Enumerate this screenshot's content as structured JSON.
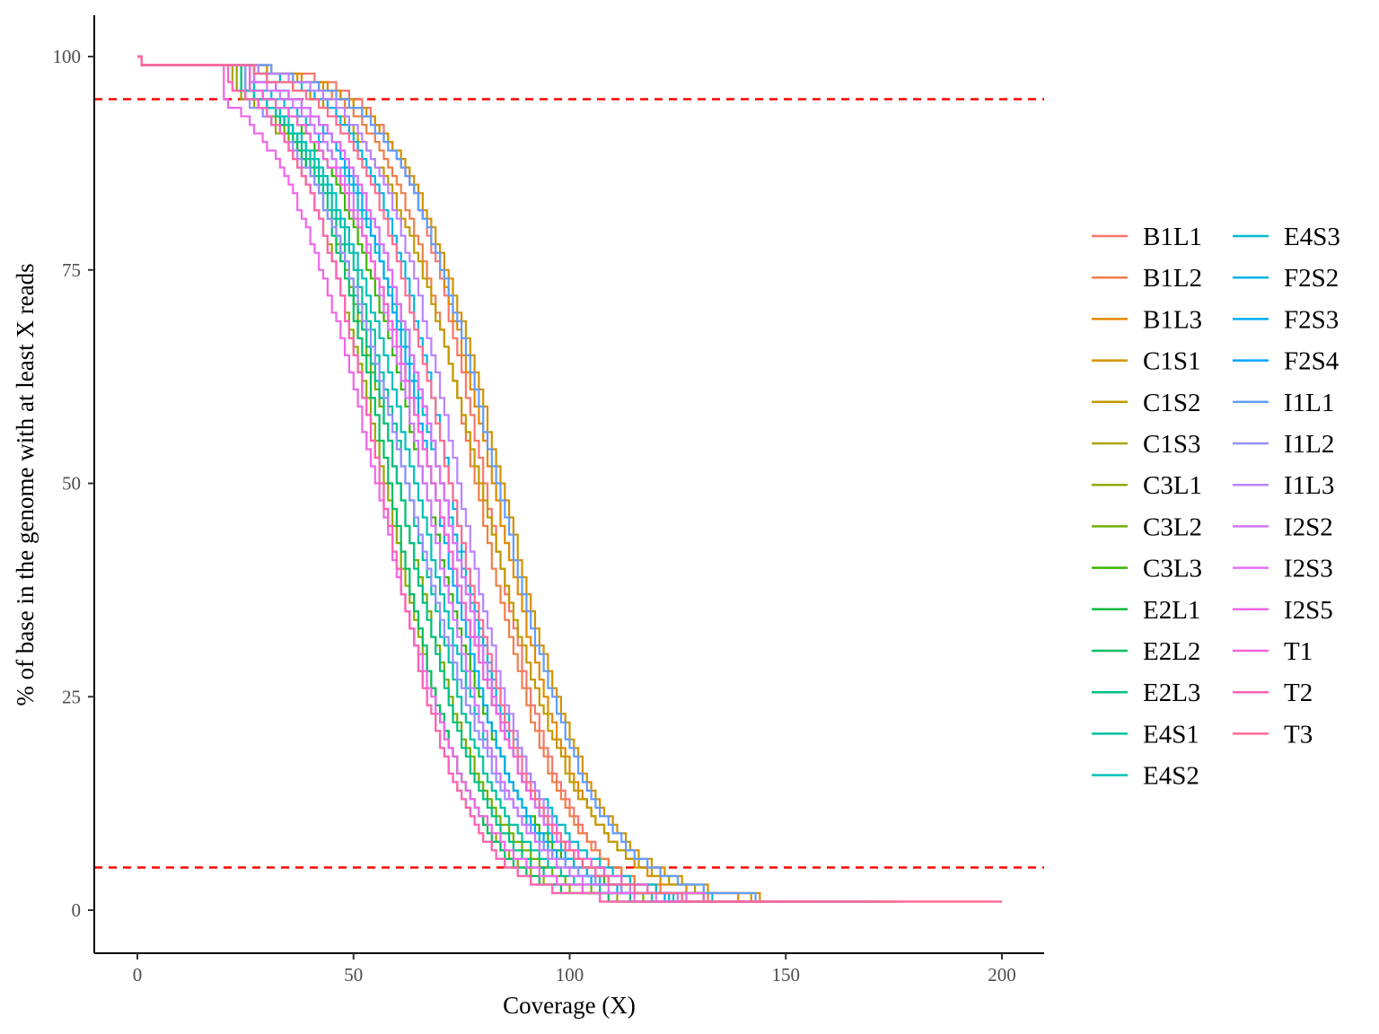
{
  "chart_data": {
    "type": "line",
    "title": "",
    "xlabel": "Coverage (X)",
    "ylabel": "% of base in the genome with at least X reads",
    "xlim": [
      -10,
      210
    ],
    "ylim": [
      -5,
      105
    ],
    "x_ticks": [
      0,
      50,
      100,
      150,
      200
    ],
    "y_ticks": [
      0,
      25,
      50,
      75,
      100
    ],
    "grid": false,
    "legend_position": "right",
    "reference_lines": [
      {
        "axis": "y",
        "value": 95,
        "style": "dashed",
        "color": "#ff0000"
      },
      {
        "axis": "y",
        "value": 5,
        "style": "dashed",
        "color": "#ff0000"
      }
    ],
    "series": [
      {
        "name": "B1L1",
        "color": "#F8766D",
        "midpoint": 80,
        "plateau": 30,
        "end": 175
      },
      {
        "name": "B1L2",
        "color": "#EF7F49",
        "midpoint": 78,
        "plateau": 27,
        "end": 168
      },
      {
        "name": "B1L3",
        "color": "#E38900",
        "midpoint": 82,
        "plateau": 31,
        "end": 176
      },
      {
        "name": "C1S1",
        "color": "#D49200",
        "midpoint": 84,
        "plateau": 30,
        "end": 175
      },
      {
        "name": "C1S2",
        "color": "#C29A00",
        "midpoint": 79,
        "plateau": 28,
        "end": 170
      },
      {
        "name": "C1S3",
        "color": "#ABA300",
        "midpoint": 56,
        "plateau": 22,
        "end": 150
      },
      {
        "name": "C3L1",
        "color": "#93AA00",
        "midpoint": 57,
        "plateau": 23,
        "end": 152
      },
      {
        "name": "C3L2",
        "color": "#72B000",
        "midpoint": 60,
        "plateau": 24,
        "end": 155
      },
      {
        "name": "C3L3",
        "color": "#39B600",
        "midpoint": 66,
        "plateau": 26,
        "end": 160
      },
      {
        "name": "E2L1",
        "color": "#00BA38",
        "midpoint": 68,
        "plateau": 27,
        "end": 162
      },
      {
        "name": "E2L2",
        "color": "#00BE67",
        "midpoint": 58,
        "plateau": 24,
        "end": 154
      },
      {
        "name": "E2L3",
        "color": "#00C085",
        "midpoint": 60,
        "plateau": 24,
        "end": 158
      },
      {
        "name": "E4S1",
        "color": "#00C19F",
        "midpoint": 62,
        "plateau": 25,
        "end": 160
      },
      {
        "name": "E4S2",
        "color": "#00C0B8",
        "midpoint": 64,
        "plateau": 25,
        "end": 162
      },
      {
        "name": "E4S3",
        "color": "#00BCD2",
        "midpoint": 70,
        "plateau": 27,
        "end": 170
      },
      {
        "name": "F2S2",
        "color": "#00B5E6",
        "midpoint": 72,
        "plateau": 27,
        "end": 172
      },
      {
        "name": "F2S3",
        "color": "#00ABF5",
        "midpoint": 68,
        "plateau": 26,
        "end": 165
      },
      {
        "name": "F2S4",
        "color": "#00A5FF",
        "midpoint": 70,
        "plateau": 26,
        "end": 168
      },
      {
        "name": "I1L1",
        "color": "#619CFF",
        "midpoint": 83,
        "plateau": 31,
        "end": 177
      },
      {
        "name": "I1L2",
        "color": "#9590FF",
        "midpoint": 62,
        "plateau": 25,
        "end": 158
      },
      {
        "name": "I1L3",
        "color": "#B983FF",
        "midpoint": 74,
        "plateau": 28,
        "end": 172
      },
      {
        "name": "I2S2",
        "color": "#D277FF",
        "midpoint": 66,
        "plateau": 26,
        "end": 160
      },
      {
        "name": "I2S3",
        "color": "#E36EF6",
        "midpoint": 70,
        "plateau": 27,
        "end": 165
      },
      {
        "name": "I2S5",
        "color": "#F066E9",
        "midpoint": 55,
        "plateau": 20,
        "end": 145
      },
      {
        "name": "T1",
        "color": "#F962DD",
        "midpoint": 68,
        "plateau": 26,
        "end": 200
      },
      {
        "name": "T2",
        "color": "#FF62BC",
        "midpoint": 56,
        "plateau": 21,
        "end": 148
      },
      {
        "name": "T3",
        "color": "#FF6C91",
        "midpoint": 72,
        "plateau": 27,
        "end": 200
      }
    ]
  }
}
